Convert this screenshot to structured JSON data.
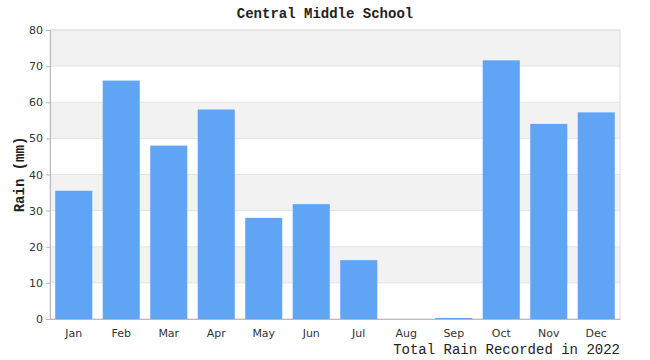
{
  "chart_data": {
    "type": "bar",
    "title": "Central Middle School",
    "x_label": "Total Rain Recorded in 2022",
    "y_label": "Rain (mm)",
    "categories": [
      "Jan",
      "Feb",
      "Mar",
      "Apr",
      "May",
      "Jun",
      "Jul",
      "Aug",
      "Sep",
      "Oct",
      "Nov",
      "Dec"
    ],
    "values": [
      35.5,
      66,
      48,
      58,
      28,
      31.8,
      16.3,
      0,
      0.3,
      71.6,
      54,
      57.2
    ],
    "color": "#60a5f5",
    "ylim": [
      0,
      80
    ],
    "yticks": [
      0,
      10,
      20,
      30,
      40,
      50,
      60,
      70,
      80
    ],
    "grid": true
  }
}
